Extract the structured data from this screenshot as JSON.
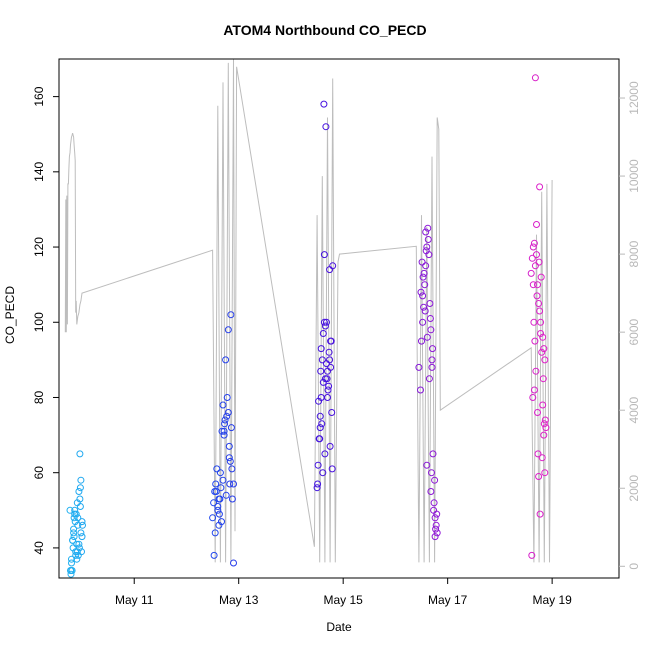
{
  "chart_data": {
    "type": "scatter",
    "title": "ATOM4 Northbound CO_PECD",
    "xlabel": "Date",
    "ylabel": "CO_PECD",
    "x_unit": "days since May 9",
    "xlim": [
      0.56,
      11.28
    ],
    "ylim": [
      32,
      170
    ],
    "y2lim": [
      -300,
      13000
    ],
    "x_ticks": [
      {
        "x": 2,
        "label": "May 11"
      },
      {
        "x": 4,
        "label": "May 13"
      },
      {
        "x": 6,
        "label": "May 15"
      },
      {
        "x": 8,
        "label": "May 17"
      },
      {
        "x": 10,
        "label": "May 19"
      }
    ],
    "y_ticks": [
      40,
      60,
      80,
      100,
      120,
      140,
      160
    ],
    "y2_ticks": [
      0,
      2000,
      4000,
      6000,
      8000,
      10000,
      12000
    ],
    "colors": {
      "line": "#bdbdbd",
      "axis": "#000000",
      "right_axis": "#b8b8b8",
      "gradient": [
        "#20b0f0",
        "#1a55f0",
        "#3a10e0",
        "#8a18d8",
        "#e020c8"
      ]
    },
    "series": [
      {
        "name": "CO_PECD points (left axis)",
        "axis": "left",
        "mark": "open-circle",
        "x": [
          0.78,
          0.8,
          0.82,
          0.84,
          0.86,
          0.88,
          0.9,
          0.92,
          0.94,
          0.96,
          0.98,
          1.0,
          0.79,
          0.83,
          0.87,
          0.91,
          0.95,
          0.99,
          0.81,
          0.85,
          0.89,
          0.93,
          0.97,
          0.77,
          0.8,
          0.84,
          0.88,
          0.92,
          0.96,
          1.0,
          0.82,
          0.86,
          0.9,
          0.94,
          0.98,
          1.01,
          0.79,
          0.85,
          0.91,
          0.97,
          3.5,
          3.52,
          3.54,
          3.56,
          3.58,
          3.6,
          3.62,
          3.64,
          3.66,
          3.68,
          3.7,
          3.72,
          3.74,
          3.76,
          3.78,
          3.8,
          3.82,
          3.84,
          3.86,
          3.88,
          3.9,
          3.55,
          3.6,
          3.65,
          3.7,
          3.75,
          3.8,
          3.85,
          3.9,
          3.57,
          3.62,
          3.67,
          3.72,
          3.77,
          3.82,
          3.87,
          3.53,
          3.63,
          3.73,
          3.83,
          5.5,
          5.52,
          5.54,
          5.56,
          5.58,
          5.6,
          5.62,
          5.64,
          5.66,
          5.68,
          5.7,
          5.72,
          5.74,
          5.76,
          5.78,
          5.8,
          5.53,
          5.57,
          5.61,
          5.65,
          5.69,
          5.73,
          5.77,
          5.55,
          5.59,
          5.63,
          5.67,
          5.71,
          5.75,
          5.79,
          5.51,
          5.56,
          5.62,
          5.68,
          5.74,
          5.58,
          5.64,
          5.7,
          5.76,
          5.66,
          7.45,
          7.48,
          7.5,
          7.52,
          7.54,
          7.56,
          7.58,
          7.6,
          7.62,
          7.64,
          7.66,
          7.68,
          7.7,
          7.72,
          7.74,
          7.76,
          7.78,
          7.8,
          7.49,
          7.53,
          7.57,
          7.61,
          7.65,
          7.69,
          7.73,
          7.77,
          7.51,
          7.55,
          7.59,
          7.63,
          7.67,
          7.71,
          7.75,
          7.79,
          7.52,
          7.6,
          7.68,
          7.76,
          7.58,
          7.7,
          9.6,
          9.62,
          9.64,
          9.66,
          9.68,
          9.7,
          9.72,
          9.74,
          9.76,
          9.78,
          9.8,
          9.82,
          9.84,
          9.86,
          9.88,
          9.63,
          9.67,
          9.71,
          9.75,
          9.79,
          9.83,
          9.87,
          9.61,
          9.65,
          9.69,
          9.73,
          9.77,
          9.81,
          9.85,
          9.64,
          9.7,
          9.76,
          9.82,
          9.66,
          9.74,
          9.86,
          9.68,
          9.78,
          9.72,
          9.84
        ],
        "y": [
          34,
          37,
          42,
          45,
          50,
          38,
          41,
          48,
          55,
          65,
          58,
          43,
          33,
          40,
          47,
          52,
          40,
          39,
          34,
          43,
          49,
          38,
          51,
          50,
          36,
          44,
          39,
          46,
          53,
          47,
          42,
          49,
          37,
          41,
          44,
          46,
          34,
          48,
          39,
          56,
          48,
          52,
          55,
          57,
          61,
          50,
          46,
          53,
          56,
          71,
          58,
          71,
          74,
          54,
          80,
          76,
          67,
          63,
          72,
          53,
          57,
          44,
          51,
          60,
          78,
          90,
          98,
          102,
          36,
          55,
          53,
          47,
          70,
          75,
          64,
          61,
          38,
          49,
          73,
          57,
          56,
          62,
          69,
          75,
          80,
          90,
          97,
          100,
          99,
          89,
          87,
          83,
          90,
          95,
          76,
          115,
          79,
          87,
          60,
          65,
          85,
          92,
          95,
          69,
          73,
          158,
          152,
          82,
          67,
          61,
          57,
          72,
          84,
          100,
          114,
          93,
          118,
          80,
          88,
          85,
          88,
          82,
          95,
          100,
          104,
          110,
          115,
          120,
          125,
          118,
          105,
          98,
          90,
          65,
          52,
          48,
          46,
          44,
          108,
          112,
          103,
          96,
          85,
          60,
          50,
          45,
          116,
          113,
          119,
          122,
          101,
          93,
          58,
          49,
          107,
          62,
          55,
          43,
          124,
          88,
          113,
          117,
          120,
          121,
          115,
          126,
          110,
          105,
          136,
          97,
          92,
          78,
          70,
          60,
          72,
          80,
          95,
          107,
          116,
          112,
          85,
          74,
          38,
          100,
          87,
          65,
          49,
          64,
          73,
          110,
          118,
          103,
          96,
          82,
          59,
          90,
          165,
          100,
          76,
          93
        ]
      },
      {
        "name": "Secondary series (right axis, line)",
        "axis": "right",
        "mark": "line",
        "x": [
          0.68,
          0.69,
          0.7,
          0.71,
          0.72,
          0.73,
          0.74,
          0.75,
          0.76,
          0.77,
          0.78,
          0.79,
          0.8,
          0.81,
          0.82,
          0.83,
          0.84,
          0.85,
          0.86,
          0.87,
          0.88,
          0.89,
          0.9,
          0.92,
          0.94,
          0.96,
          0.98,
          1.0,
          3.5,
          3.55,
          3.6,
          3.65,
          3.7,
          3.75,
          3.8,
          3.85,
          3.9,
          3.93,
          3.96,
          5.45,
          5.5,
          5.55,
          5.6,
          5.65,
          5.7,
          5.75,
          5.8,
          5.85,
          5.9,
          5.93,
          7.4,
          7.45,
          7.5,
          7.55,
          7.6,
          7.65,
          7.7,
          7.75,
          7.8,
          7.83,
          7.86,
          9.6,
          9.65,
          9.7,
          9.75,
          9.8,
          9.85,
          9.9,
          9.95,
          10.0
        ],
        "y": [
          6000,
          9400,
          6000,
          9500,
          6200,
          9800,
          9800,
          10200,
          10500,
          10600,
          10800,
          10900,
          11000,
          11050,
          11100,
          11050,
          11000,
          10800,
          10600,
          10400,
          6500,
          6800,
          6200,
          6400,
          6500,
          6700,
          6800,
          7000,
          8100,
          100,
          11800,
          100,
          12400,
          100,
          12900,
          100,
          13000,
          900,
          12800,
          500,
          9000,
          100,
          10000,
          100,
          11500,
          100,
          12500,
          100,
          7800,
          8000,
          8200,
          100,
          9000,
          100,
          8700,
          100,
          10500,
          100,
          11500,
          11200,
          4000,
          5600,
          100,
          8500,
          100,
          9600,
          100,
          9800,
          100,
          9900
        ]
      }
    ]
  }
}
